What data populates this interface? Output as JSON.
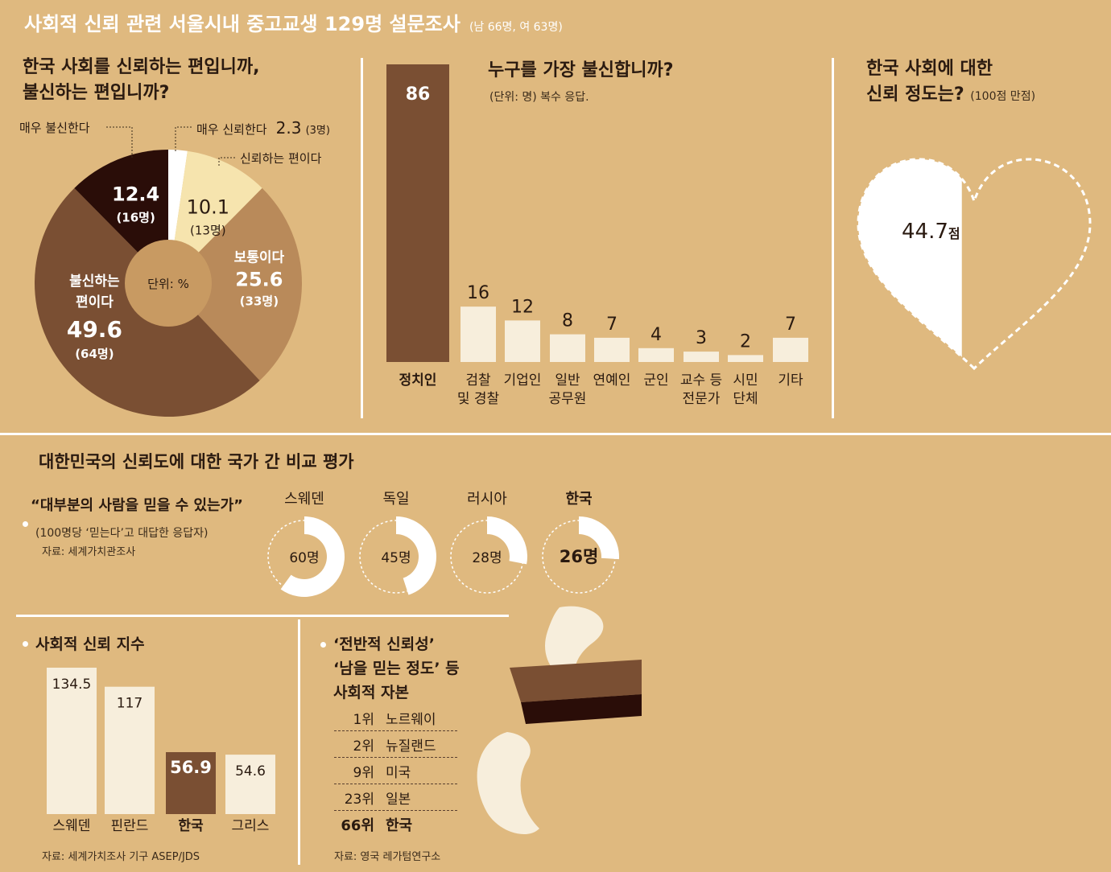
{
  "header": {
    "title": "사회적 신뢰 관련 서울시내 중고교생 129명 설문조사",
    "sample": "(남 66명, 여 63명)"
  },
  "pie_section": {
    "title_line1": "한국 사회를 신뢰하는 편입니까,",
    "title_line2": "불신하는 편입니까?",
    "center_label": "단위: %",
    "callout_very_distrust": "매우 불신한다",
    "callout_very_trust": "매우 신뢰한다",
    "callout_very_trust_value": "2.3",
    "callout_very_trust_count": "(3명)",
    "callout_trust": "신뢰하는 편이다"
  },
  "bar_section": {
    "title": "누구를 가장 불신합니까?",
    "unit": "(단위: 명) 복수 응답."
  },
  "heart_section": {
    "title_line1": "한국 사회에 대한",
    "title_line2": "신뢰 정도는?",
    "title_note": "(100점 만점)",
    "score": "44.7",
    "score_unit": "점"
  },
  "compare_section": {
    "title": "대한민국의 신뢰도에 대한 국가 간 비교 평가",
    "quote_title": "“대부분의 사람을 믿을 수 있는가”",
    "quote_note": "(100명당 ‘믿는다’고 대답한 응답자)",
    "quote_source": "자료: 세계가치관조사"
  },
  "index_section": {
    "title": "사회적 신뢰 지수",
    "source": "자료: 세계가치조사 기구 ASEP/JDS"
  },
  "ranking_section": {
    "title_line1": "‘전반적 신뢰성’",
    "title_line2": "‘남을 믿는 정도’ 등",
    "title_line3": "사회적 자본",
    "rows": [
      {
        "rank": "1위",
        "country": "노르웨이"
      },
      {
        "rank": "2위",
        "country": "뉴질랜드"
      },
      {
        "rank": "9위",
        "country": "미국"
      },
      {
        "rank": "23위",
        "country": "일본"
      },
      {
        "rank": "66위",
        "country": "한국"
      }
    ],
    "source": "자료: 영국 레가텀연구소"
  },
  "colors": {
    "background": "#dfb97f",
    "dark": "#2a0d08",
    "brown": "#7a4f33",
    "tan": "#b98a5a",
    "cream": "#f6e4ae",
    "light": "#f7eedc",
    "white": "#ffffff"
  },
  "chart_data": [
    {
      "type": "pie",
      "title": "한국 사회를 신뢰하는 편입니까, 불신하는 편입니까?",
      "unit": "%",
      "slices": [
        {
          "label": "매우 신뢰한다",
          "value": 2.3,
          "count": "(3명)",
          "value_label": "2.3",
          "color": "#ffffff"
        },
        {
          "label": "신뢰하는 편이다",
          "value": 10.1,
          "count": "(13명)",
          "value_label": "10.1",
          "color": "#f6e4ae"
        },
        {
          "label": "보통이다",
          "value": 25.6,
          "count": "(33명)",
          "value_label": "25.6",
          "color": "#b98a5a"
        },
        {
          "label_line1": "불신하는",
          "label_line2": "편이다",
          "label": "불신하는 편이다",
          "value": 49.6,
          "count": "(64명)",
          "value_label": "49.6",
          "color": "#7a4f33"
        },
        {
          "label": "매우 불신한다",
          "value": 12.4,
          "count": "(16명)",
          "value_label": "12.4",
          "color": "#2a0d08"
        }
      ]
    },
    {
      "type": "bar",
      "title": "누구를 가장 불신합니까?",
      "unit": "명",
      "categories": [
        {
          "line1": "정치인",
          "line2": ""
        },
        {
          "line1": "검찰",
          "line2": "및 경찰"
        },
        {
          "line1": "기업인",
          "line2": ""
        },
        {
          "line1": "일반",
          "line2": "공무원"
        },
        {
          "line1": "연예인",
          "line2": ""
        },
        {
          "line1": "군인",
          "line2": ""
        },
        {
          "line1": "교수 등",
          "line2": "전문가"
        },
        {
          "line1": "시민",
          "line2": "단체"
        },
        {
          "line1": "기타",
          "line2": ""
        }
      ],
      "values": [
        86,
        16,
        12,
        8,
        7,
        4,
        3,
        2,
        7
      ]
    },
    {
      "type": "gauge",
      "title": "한국 사회에 대한 신뢰 정도는?",
      "value": 44.7,
      "max": 100
    },
    {
      "type": "donut",
      "title": "“대부분의 사람을 믿을 수 있는가”",
      "items": [
        {
          "name": "스웨덴",
          "value": 60,
          "label": "60명"
        },
        {
          "name": "독일",
          "value": 45,
          "label": "45명"
        },
        {
          "name": "러시아",
          "value": 28,
          "label": "28명"
        },
        {
          "name": "한국",
          "value": 26,
          "label": "26명"
        }
      ],
      "max": 100
    },
    {
      "type": "bar",
      "title": "사회적 신뢰 지수",
      "categories": [
        "스웨덴",
        "핀란드",
        "한국",
        "그리스"
      ],
      "values": [
        134.5,
        117,
        56.9,
        54.6
      ],
      "value_labels": [
        "134.5",
        "117",
        "56.9",
        "54.6"
      ]
    }
  ]
}
